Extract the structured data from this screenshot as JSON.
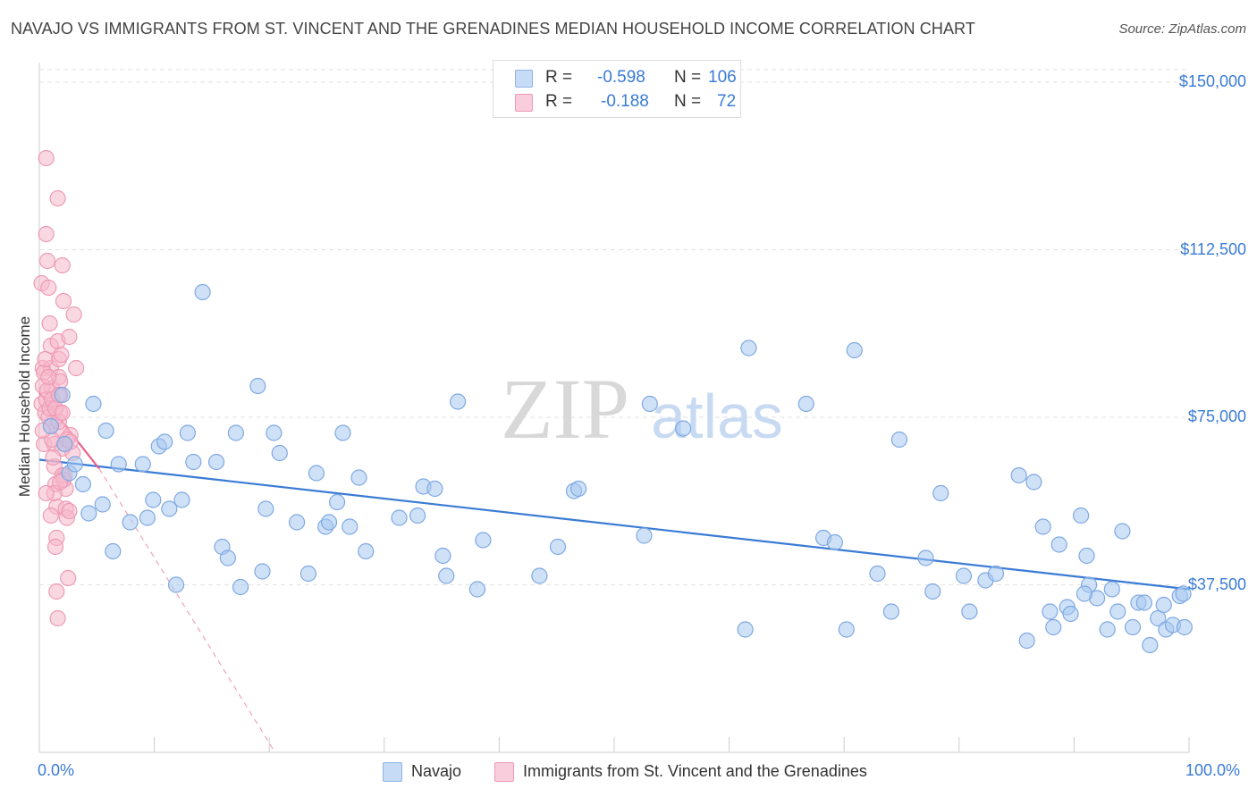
{
  "title": "NAVAJO VS IMMIGRANTS FROM ST. VINCENT AND THE GRENADINES MEDIAN HOUSEHOLD INCOME CORRELATION CHART",
  "source": "Source: ZipAtlas.com",
  "watermark": {
    "zip": "ZIP",
    "atlas": "atlas"
  },
  "legend": {
    "r_label": "R =",
    "n_label": "N =",
    "series": [
      {
        "r": "-0.598",
        "n": "106",
        "color": "#a8c8f0"
      },
      {
        "r": "-0.188",
        "n": "72",
        "color": "#f5b8cb"
      }
    ]
  },
  "bottom_legend": [
    "Navajo",
    "Immigrants from St. Vincent and the Grenadines"
  ],
  "colors": {
    "blue": "#3a7bd5",
    "blue_fill": "#a8c8f0",
    "pink": "#e8608a",
    "pink_fill": "#f5b8cb"
  },
  "chart_data": {
    "type": "scatter",
    "xlabel": "",
    "ylabel": "Median Household Income",
    "xlim": [
      0,
      100
    ],
    "ylim": [
      0,
      156000
    ],
    "x_tick_labels": [
      "0.0%",
      "100.0%"
    ],
    "y_ticks": [
      37500,
      75000,
      112500,
      150000
    ],
    "y_tick_labels": [
      "$37,500",
      "$75,000",
      "$112,500",
      "$150,000"
    ],
    "grid": true,
    "series": [
      {
        "name": "Navajo",
        "trend": [
          [
            0,
            65500
          ],
          [
            100,
            36500
          ]
        ],
        "points": [
          [
            1.0,
            73000
          ],
          [
            2.0,
            80000
          ],
          [
            2.2,
            69000
          ],
          [
            2.6,
            62500
          ],
          [
            3.1,
            64500
          ],
          [
            3.8,
            60000
          ],
          [
            4.3,
            53500
          ],
          [
            4.7,
            78000
          ],
          [
            5.5,
            55500
          ],
          [
            5.8,
            72000
          ],
          [
            6.4,
            45000
          ],
          [
            6.9,
            64500
          ],
          [
            7.9,
            51500
          ],
          [
            9.0,
            64500
          ],
          [
            9.4,
            52500
          ],
          [
            9.9,
            56500
          ],
          [
            10.4,
            68500
          ],
          [
            10.9,
            69500
          ],
          [
            11.3,
            54500
          ],
          [
            11.9,
            37500
          ],
          [
            12.4,
            56500
          ],
          [
            12.9,
            71500
          ],
          [
            13.4,
            65000
          ],
          [
            14.2,
            103000
          ],
          [
            15.4,
            65000
          ],
          [
            15.9,
            46000
          ],
          [
            16.4,
            43500
          ],
          [
            17.1,
            71500
          ],
          [
            17.5,
            37000
          ],
          [
            19.0,
            82000
          ],
          [
            19.4,
            40500
          ],
          [
            19.7,
            54500
          ],
          [
            20.4,
            71500
          ],
          [
            20.9,
            67000
          ],
          [
            22.4,
            51500
          ],
          [
            23.4,
            40000
          ],
          [
            24.1,
            62500
          ],
          [
            24.9,
            50500
          ],
          [
            25.2,
            51500
          ],
          [
            25.9,
            56000
          ],
          [
            26.4,
            71500
          ],
          [
            27.0,
            50500
          ],
          [
            27.8,
            61500
          ],
          [
            28.4,
            45000
          ],
          [
            31.3,
            52500
          ],
          [
            32.9,
            53000
          ],
          [
            33.4,
            59500
          ],
          [
            34.4,
            59000
          ],
          [
            35.1,
            44000
          ],
          [
            35.4,
            39500
          ],
          [
            36.4,
            78500
          ],
          [
            38.1,
            36500
          ],
          [
            38.6,
            47500
          ],
          [
            43.5,
            39500
          ],
          [
            45.1,
            46000
          ],
          [
            46.5,
            58500
          ],
          [
            46.9,
            59000
          ],
          [
            52.6,
            48500
          ],
          [
            53.1,
            78000
          ],
          [
            56.0,
            72500
          ],
          [
            61.4,
            27500
          ],
          [
            61.7,
            90500
          ],
          [
            66.7,
            78000
          ],
          [
            68.2,
            48000
          ],
          [
            69.2,
            47000
          ],
          [
            70.2,
            27500
          ],
          [
            70.9,
            90000
          ],
          [
            72.9,
            40000
          ],
          [
            74.1,
            31500
          ],
          [
            74.8,
            70000
          ],
          [
            77.7,
            36000
          ],
          [
            78.4,
            58000
          ],
          [
            80.4,
            39500
          ],
          [
            80.9,
            31500
          ],
          [
            82.3,
            38500
          ],
          [
            83.2,
            40000
          ],
          [
            85.2,
            62000
          ],
          [
            85.9,
            25000
          ],
          [
            86.5,
            60500
          ],
          [
            87.3,
            50500
          ],
          [
            87.9,
            31500
          ],
          [
            88.2,
            28000
          ],
          [
            88.7,
            46500
          ],
          [
            89.4,
            32500
          ],
          [
            89.7,
            31000
          ],
          [
            90.6,
            53000
          ],
          [
            91.1,
            44000
          ],
          [
            91.3,
            37500
          ],
          [
            92.0,
            34500
          ],
          [
            92.9,
            27500
          ],
          [
            93.3,
            36500
          ],
          [
            93.8,
            31500
          ],
          [
            94.2,
            49500
          ],
          [
            95.1,
            28000
          ],
          [
            95.6,
            33500
          ],
          [
            96.1,
            33500
          ],
          [
            96.6,
            24000
          ],
          [
            97.3,
            30000
          ],
          [
            97.8,
            33000
          ],
          [
            98.0,
            27500
          ],
          [
            98.6,
            28500
          ],
          [
            99.2,
            35000
          ],
          [
            99.5,
            35500
          ],
          [
            99.6,
            28000
          ],
          [
            77.1,
            43500
          ],
          [
            90.9,
            35500
          ]
        ]
      },
      {
        "name": "Immigrants from St. Vincent and the Grenadines",
        "trend": [
          [
            0,
            80500
          ],
          [
            5.2,
            63500
          ]
        ],
        "trend_ext": [
          [
            5.2,
            63500
          ],
          [
            20.5,
            0
          ]
        ],
        "points": [
          [
            0.2,
            105000
          ],
          [
            0.3,
            86000
          ],
          [
            0.4,
            69000
          ],
          [
            0.6,
            133000
          ],
          [
            0.6,
            116000
          ],
          [
            0.7,
            110000
          ],
          [
            0.8,
            104000
          ],
          [
            0.9,
            96000
          ],
          [
            1.0,
            91000
          ],
          [
            1.0,
            86000
          ],
          [
            1.1,
            81500
          ],
          [
            1.2,
            78000
          ],
          [
            1.2,
            74000
          ],
          [
            1.3,
            69000
          ],
          [
            1.3,
            64000
          ],
          [
            1.4,
            60000
          ],
          [
            1.5,
            55000
          ],
          [
            1.5,
            48000
          ],
          [
            1.6,
            124000
          ],
          [
            1.6,
            92000
          ],
          [
            1.7,
            88000
          ],
          [
            1.7,
            84000
          ],
          [
            1.8,
            80000
          ],
          [
            1.8,
            76000
          ],
          [
            1.9,
            72000
          ],
          [
            2.0,
            109000
          ],
          [
            2.0,
            68000
          ],
          [
            2.1,
            101000
          ],
          [
            2.2,
            62000
          ],
          [
            2.3,
            59000
          ],
          [
            2.3,
            54500
          ],
          [
            2.4,
            52500
          ],
          [
            2.5,
            39000
          ],
          [
            2.6,
            93000
          ],
          [
            2.7,
            71000
          ],
          [
            2.9,
            67000
          ],
          [
            3.0,
            98000
          ],
          [
            3.2,
            86000
          ],
          [
            0.2,
            78000
          ],
          [
            0.3,
            82000
          ],
          [
            0.4,
            85000
          ],
          [
            0.5,
            76000
          ],
          [
            0.6,
            79000
          ],
          [
            0.7,
            81000
          ],
          [
            0.8,
            75000
          ],
          [
            0.9,
            77000
          ],
          [
            1.0,
            73000
          ],
          [
            1.1,
            70000
          ],
          [
            1.2,
            66000
          ],
          [
            1.3,
            58000
          ],
          [
            1.4,
            46000
          ],
          [
            1.5,
            36000
          ],
          [
            1.6,
            30000
          ],
          [
            1.7,
            74000
          ],
          [
            1.8,
            83000
          ],
          [
            1.9,
            89000
          ],
          [
            2.0,
            62000
          ],
          [
            2.1,
            61000
          ],
          [
            2.2,
            69000
          ],
          [
            0.3,
            72000
          ],
          [
            0.5,
            88000
          ],
          [
            0.8,
            84000
          ],
          [
            1.1,
            79000
          ],
          [
            1.4,
            77000
          ],
          [
            1.7,
            80000
          ],
          [
            2.0,
            76000
          ],
          [
            2.4,
            70000
          ],
          [
            2.7,
            69500
          ],
          [
            0.6,
            58000
          ],
          [
            1.0,
            53000
          ],
          [
            1.8,
            60500
          ],
          [
            2.6,
            54000
          ]
        ]
      }
    ]
  }
}
